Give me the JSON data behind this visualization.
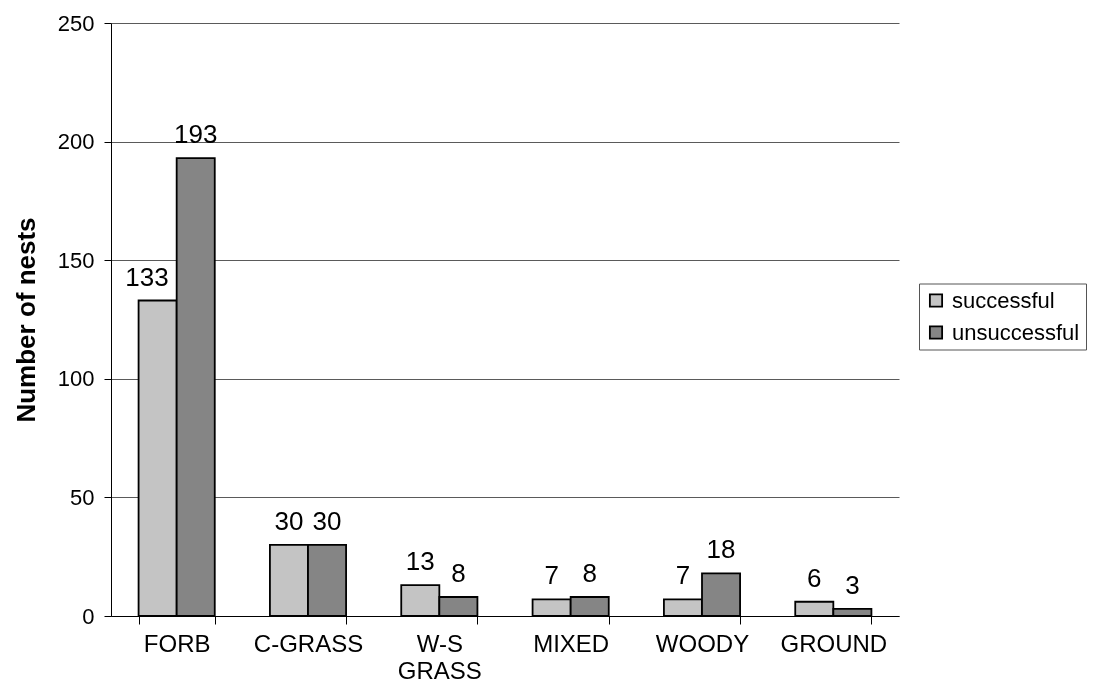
{
  "chart_data": {
    "type": "bar",
    "ylabel": "Number of nests",
    "categories": [
      "FORB",
      "C-GRASS",
      "W-S GRASS",
      "MIXED",
      "WOODY",
      "GROUND"
    ],
    "series": [
      {
        "name": "successful",
        "color": "#c4c4c4",
        "values": [
          133,
          30,
          13,
          7,
          7,
          6
        ]
      },
      {
        "name": "unsuccessful",
        "color": "#858585",
        "values": [
          193,
          30,
          8,
          8,
          18,
          3
        ]
      }
    ],
    "ylim": [
      0,
      250
    ],
    "yticks": [
      0,
      50,
      100,
      150,
      200,
      250
    ],
    "grid": "y",
    "legend": "right",
    "data_labels": true
  }
}
